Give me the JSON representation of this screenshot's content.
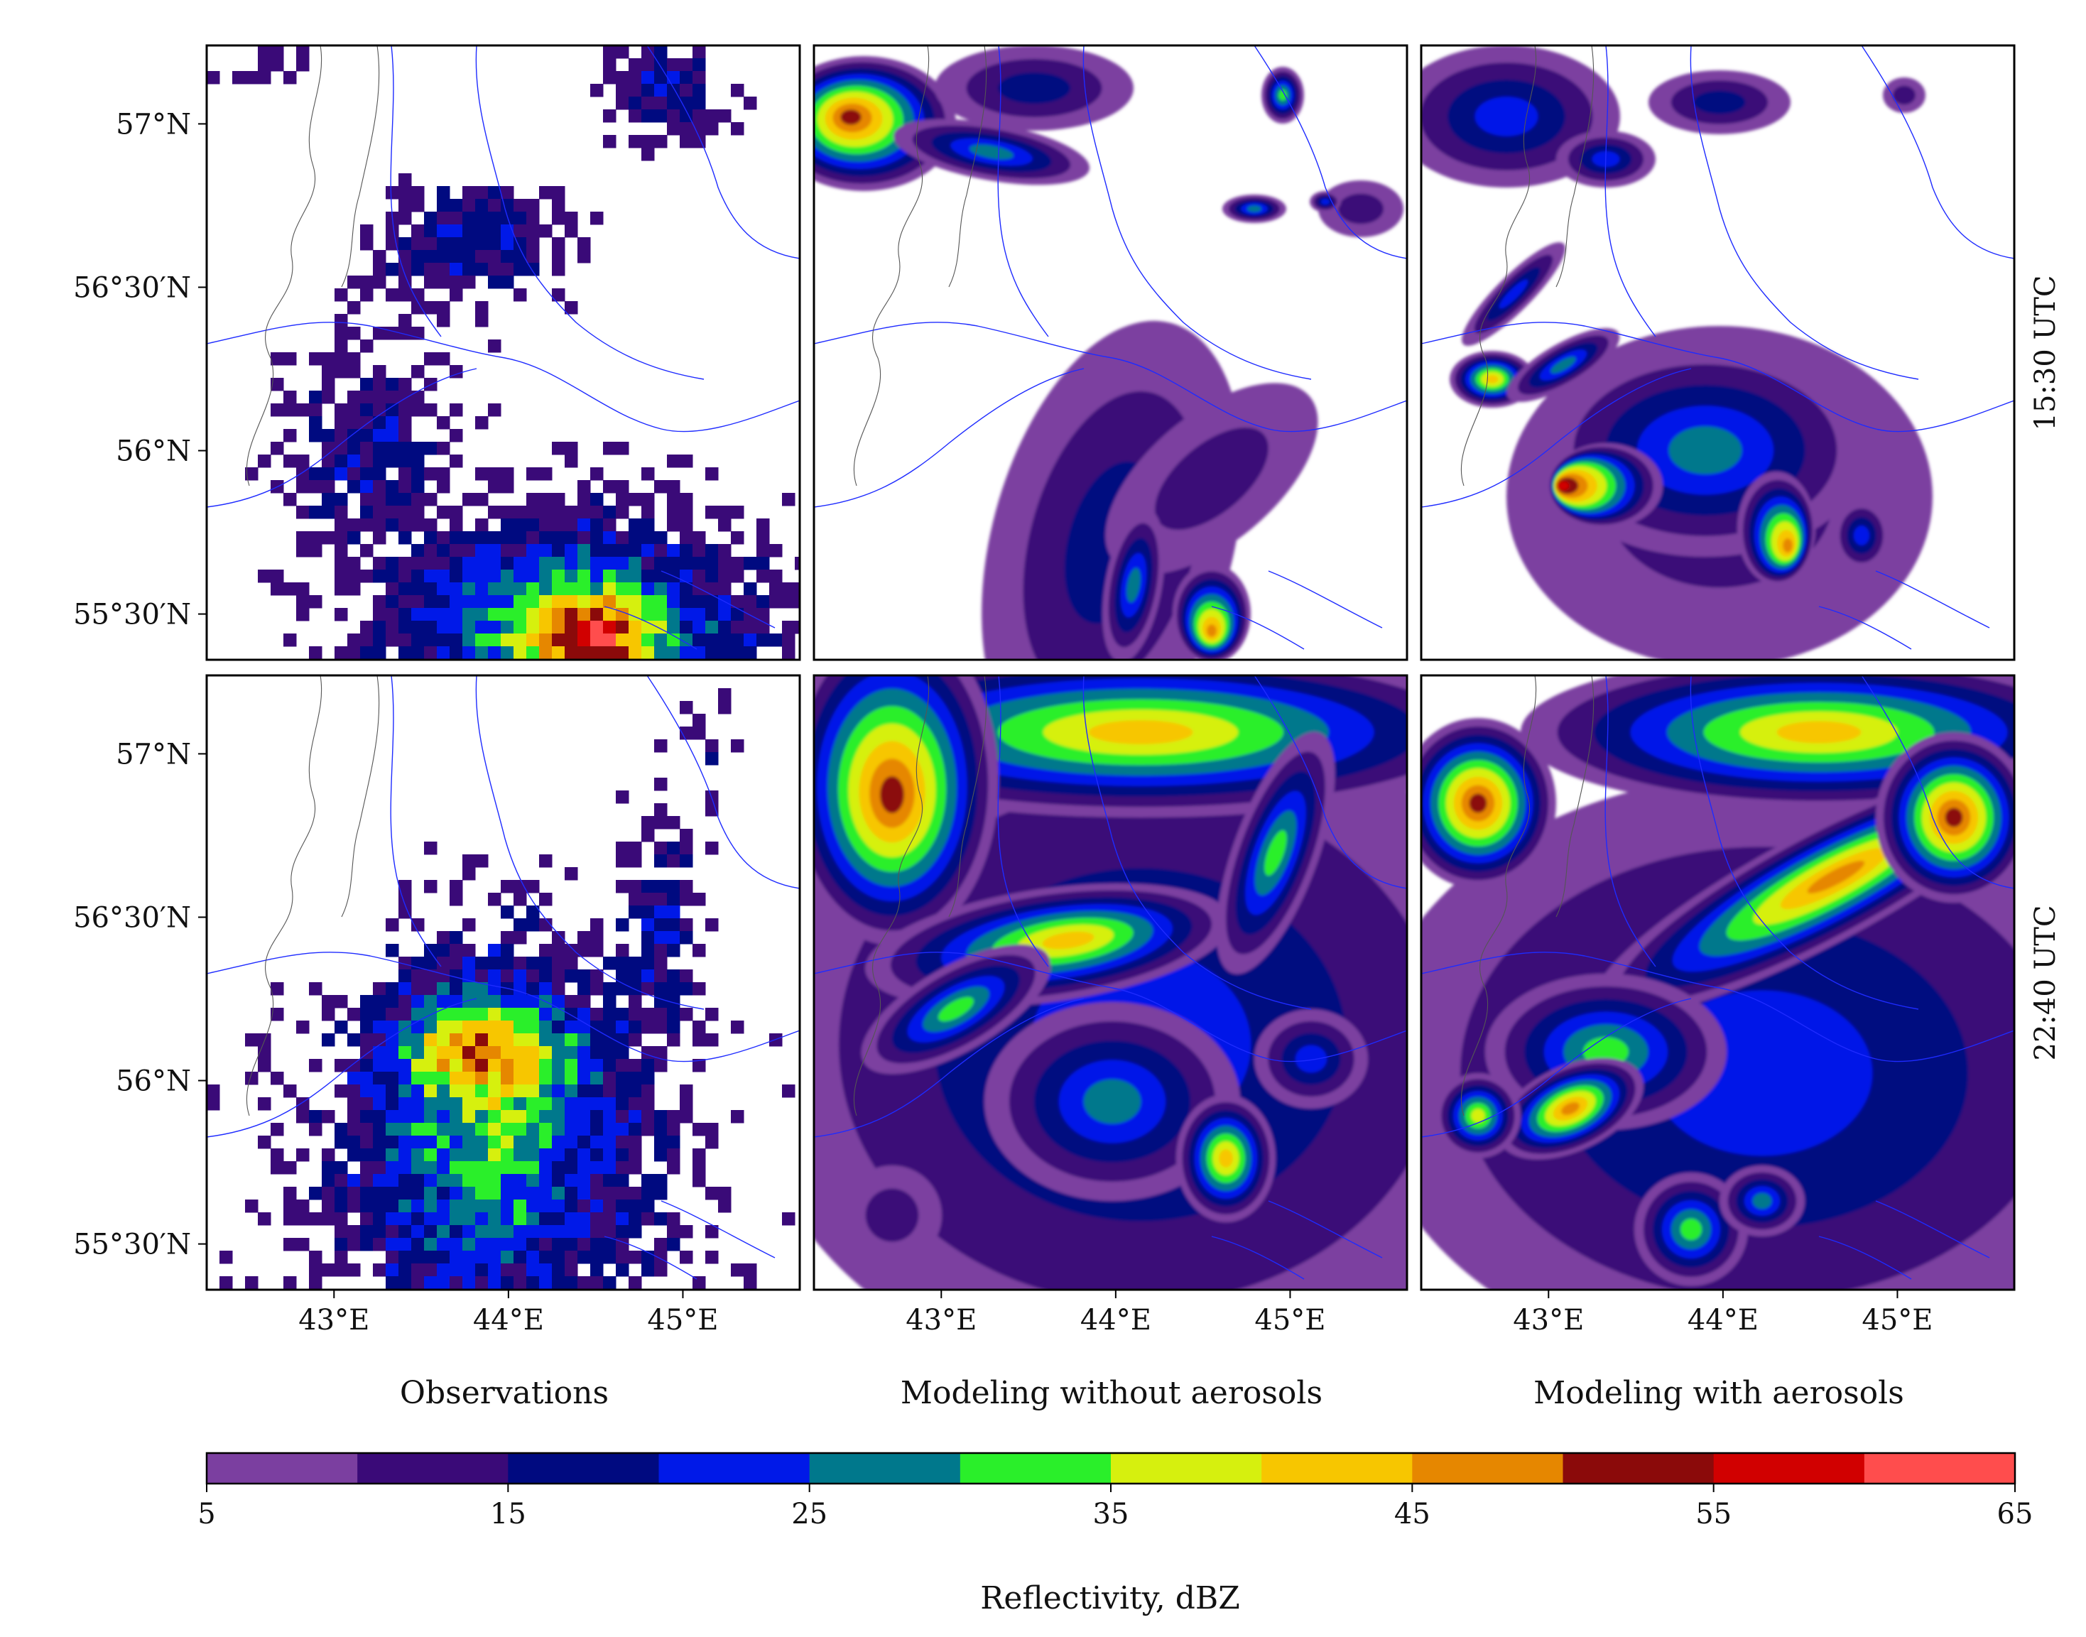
{
  "figure": {
    "columns": [
      "Observations",
      "Modeling without aerosols",
      "Modeling with aerosols"
    ],
    "rows": [
      "15:30 UTC",
      "22:40 UTC"
    ],
    "y_ticks": [
      "57°N",
      "56°30′N",
      "56°N",
      "55°30′N"
    ],
    "x_ticks": [
      "43°E",
      "44°E",
      "45°E"
    ],
    "lat_ticks": [
      57.0,
      56.5,
      56.0,
      55.5
    ],
    "lon_ticks": [
      43.0,
      44.0,
      45.0
    ],
    "map_extent": {
      "lon_min": 42.27,
      "lon_max": 45.67,
      "lat_min": 55.36,
      "lat_max": 57.24
    },
    "colorbar": {
      "label": "Reflectivity, dBZ",
      "tick_labels": [
        "5",
        "15",
        "25",
        "35",
        "45",
        "55",
        "65"
      ],
      "bounds": [
        5,
        10,
        15,
        20,
        25,
        30,
        35,
        40,
        45,
        50,
        55,
        60,
        65
      ],
      "colors": [
        "#7b3fa0",
        "#3a0a78",
        "#000a80",
        "#0019e8",
        "#00788c",
        "#2aef2a",
        "#d6f00e",
        "#f7c600",
        "#e68700",
        "#8b0a0a",
        "#d10000",
        "#ff4d4d"
      ]
    },
    "map_style": {
      "river_color": "#1e2bff",
      "border_color": "#555555"
    }
  }
}
